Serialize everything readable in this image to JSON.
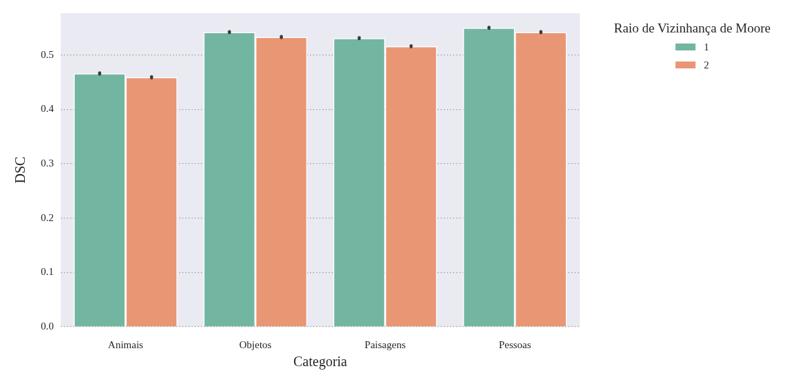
{
  "chart_data": {
    "type": "bar",
    "xlabel": "Categoria",
    "ylabel": "DSC",
    "legend_title": "Raio de Vizinhança de Moore",
    "categories": [
      "Animais",
      "Objetos",
      "Paisagens",
      "Pessoas"
    ],
    "series": [
      {
        "name": "1",
        "color": "#72b6a1",
        "values": [
          0.466,
          0.542,
          0.531,
          0.55
        ],
        "errors": [
          0.001,
          0.001,
          0.001,
          0.001
        ]
      },
      {
        "name": "2",
        "color": "#e99675",
        "values": [
          0.459,
          0.533,
          0.516,
          0.542
        ],
        "errors": [
          0.001,
          0.001,
          0.001,
          0.001
        ]
      }
    ],
    "ylim": [
      0,
      0.577
    ],
    "yticks": [
      {
        "value": 0,
        "label": "0.0"
      },
      0.1,
      0.2,
      0.3,
      0.4,
      0.5
    ],
    "grid": "y",
    "legend": "top right"
  }
}
